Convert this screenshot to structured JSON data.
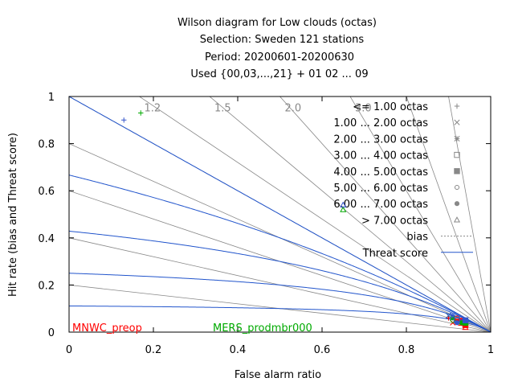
{
  "chart_data": {
    "type": "scatter",
    "title_lines": [
      "Wilson diagram  for Low clouds (octas)",
      "Selection: Sweden    121 stations",
      "Period: 20200601-20200630",
      "Used {00,03,...,21} + 01 02 ... 09"
    ],
    "xlabel": "False alarm ratio",
    "ylabel": "Hit rate (bias and Threat score)",
    "xlim": [
      0,
      1
    ],
    "ylim": [
      0,
      1
    ],
    "x_ticks": [
      "0",
      "0.2",
      "0.4",
      "0.6",
      "0.8",
      "1"
    ],
    "y_ticks": [
      "0",
      "0.2",
      "0.4",
      "0.6",
      "0.8",
      "1"
    ],
    "bias_labels": [
      "1.2",
      "1.5",
      "2.0",
      "3.0"
    ],
    "bias_values": [
      0.2,
      0.4,
      0.6,
      0.8,
      1.0,
      1.2,
      1.5,
      2.0,
      3.0,
      5.0,
      10.0
    ],
    "threat_values": [
      0.1,
      0.2,
      0.3,
      0.4,
      0.5,
      0.6,
      0.7,
      0.8,
      0.9
    ],
    "legend_position": "top-right",
    "legend": [
      {
        "label": "<= 1.00 octas",
        "marker": "plus"
      },
      {
        "label": "1.00 ... 2.00 octas",
        "marker": "cross"
      },
      {
        "label": "2.00 ... 3.00 octas",
        "marker": "star"
      },
      {
        "label": "3.00 ... 4.00 octas",
        "marker": "square-open"
      },
      {
        "label": "4.00 ... 5.00 octas",
        "marker": "square-filled"
      },
      {
        "label": "5.00 ... 6.00 octas",
        "marker": "circle-open"
      },
      {
        "label": "6.00 ... 7.00 octas",
        "marker": "circle-filled"
      },
      {
        "label": "> 7.00 octas",
        "marker": "triangle-open"
      },
      {
        "label": "bias",
        "marker": "line-dotted"
      },
      {
        "label": "Threat score",
        "marker": "line-solid"
      }
    ],
    "models": [
      {
        "name": "MNWC_preop",
        "color": "#ff0000",
        "points": [
          {
            "x": 0.9,
            "y": 0.06,
            "cls": 0
          },
          {
            "x": 0.91,
            "y": 0.04,
            "cls": 1
          },
          {
            "x": 0.92,
            "y": 0.05,
            "cls": 2
          },
          {
            "x": 0.93,
            "y": 0.04,
            "cls": 3
          },
          {
            "x": 0.94,
            "y": 0.03,
            "cls": 4
          },
          {
            "x": 0.92,
            "y": 0.06,
            "cls": 5
          },
          {
            "x": 0.93,
            "y": 0.05,
            "cls": 6
          },
          {
            "x": 0.94,
            "y": 0.02,
            "cls": 7
          }
        ]
      },
      {
        "name": "MERS_prodmbr000",
        "color": "#00aa00",
        "points": [
          {
            "x": 0.17,
            "y": 0.93,
            "cls": 0
          },
          {
            "x": 0.9,
            "y": 0.07,
            "cls": 1
          },
          {
            "x": 0.91,
            "y": 0.06,
            "cls": 2
          },
          {
            "x": 0.92,
            "y": 0.05,
            "cls": 3
          },
          {
            "x": 0.94,
            "y": 0.04,
            "cls": 4
          },
          {
            "x": 0.91,
            "y": 0.05,
            "cls": 5
          },
          {
            "x": 0.93,
            "y": 0.04,
            "cls": 6
          },
          {
            "x": 0.65,
            "y": 0.52,
            "cls": 7
          }
        ]
      },
      {
        "name": "",
        "color": "#3355cc",
        "points": [
          {
            "x": 0.13,
            "y": 0.9,
            "cls": 0
          },
          {
            "x": 0.9,
            "y": 0.07,
            "cls": 1
          },
          {
            "x": 0.91,
            "y": 0.07,
            "cls": 2
          },
          {
            "x": 0.92,
            "y": 0.05,
            "cls": 3
          },
          {
            "x": 0.94,
            "y": 0.05,
            "cls": 4
          },
          {
            "x": 0.93,
            "y": 0.06,
            "cls": 5
          },
          {
            "x": 0.92,
            "y": 0.04,
            "cls": 6
          },
          {
            "x": 0.65,
            "y": 0.54,
            "cls": 7
          }
        ]
      }
    ]
  }
}
